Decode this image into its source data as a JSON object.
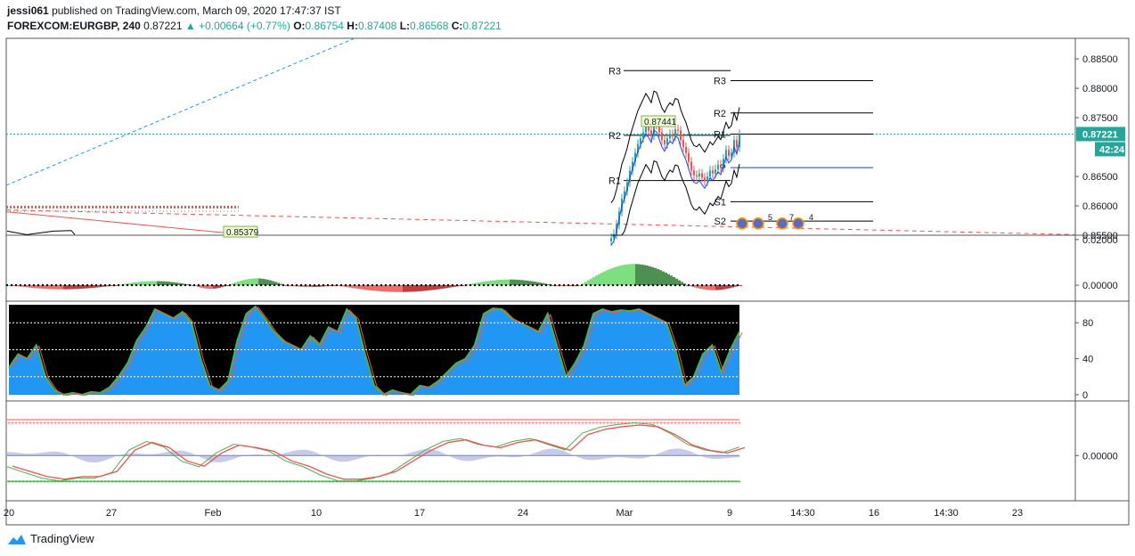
{
  "header": {
    "author": "jessi061",
    "published_text": "published on TradingView.com, March 09, 2020 17:47:37 IST",
    "symbol": "FOREXCOM:EURGBP, 240",
    "last": "0.87221",
    "change": "▲ +0.00664 (+0.77%)",
    "o_label": "O:",
    "o_value": "0.86754",
    "h_label": "H:",
    "h_value": "0.87408",
    "l_label": "L:",
    "l_value": "0.86568",
    "c_label": "C:",
    "c_value": "0.87221"
  },
  "footer": {
    "brand": "TradingView"
  },
  "colors": {
    "up": "#26a69a",
    "down": "#ef5350",
    "accent": "#2196f3",
    "pivot": "#000000"
  },
  "chart_data": [
    {
      "type": "candlestick",
      "pane": "price",
      "y_ticks": [
        "0.88500",
        "0.88000",
        "0.87500",
        "0.87221",
        "0.86500",
        "0.86000",
        "0.85500"
      ],
      "ylim": [
        0.855,
        0.8885
      ],
      "current_price_label": "0.87221",
      "countdown_label": "42:24",
      "pivot_labels": [
        "R3",
        "R2",
        "R1",
        "P",
        "S1",
        "S2"
      ],
      "pivot_levels_right": {
        "R3": 0.8813,
        "R2": 0.8758,
        "R1": 0.8722,
        "P": 0.8665,
        "S1": 0.8607,
        "S2": 0.8574
      },
      "pivot_levels_left": {
        "R3": 0.883,
        "R2": 0.872,
        "R1": 0.8643
      },
      "annotations": [
        "0.87441",
        "0.85379"
      ],
      "event_markers": [
        "5",
        "7",
        "4"
      ]
    },
    {
      "type": "histogram",
      "pane": "oscillator",
      "y_ticks": [
        "0.02000",
        "0.00000"
      ],
      "ylim": [
        -0.007,
        0.0215
      ]
    },
    {
      "type": "area",
      "pane": "stochastic",
      "y_ticks": [
        "80",
        "40",
        "0"
      ],
      "ylim": [
        -7,
        103
      ],
      "levels": [
        80,
        50,
        20
      ]
    },
    {
      "type": "line",
      "pane": "macd",
      "y_ticks": [
        "0.00000"
      ],
      "ylim": [
        -0.008,
        0.0095
      ]
    }
  ],
  "x_axis": {
    "ticks": [
      "20",
      "27",
      "Feb",
      "10",
      "17",
      "24",
      "Mar",
      "9",
      "14:30",
      "16",
      "14:30",
      "23"
    ]
  }
}
